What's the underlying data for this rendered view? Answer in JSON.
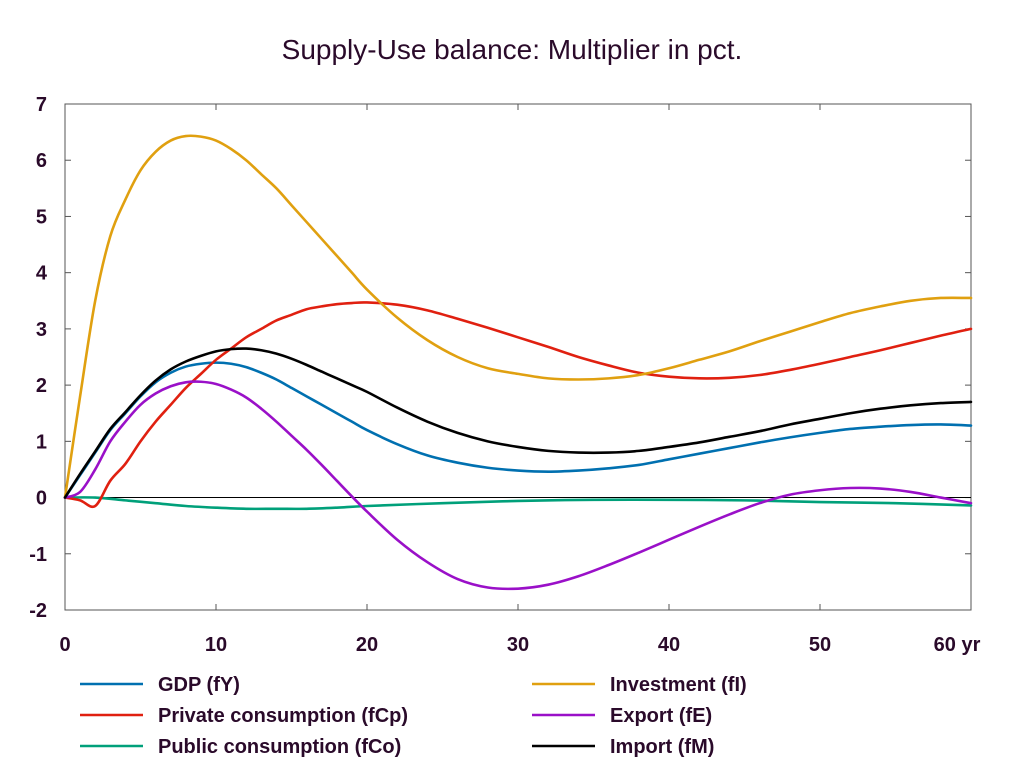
{
  "chart_data": {
    "type": "line",
    "title": "Supply-Use balance: Multiplier in pct.",
    "xlabel": "",
    "ylabel": "",
    "xlim": [
      0,
      60
    ],
    "ylim": [
      -2,
      7
    ],
    "xticks": [
      0,
      10,
      20,
      30,
      40,
      50,
      60
    ],
    "xtick_labels": [
      "0",
      "10",
      "20",
      "30",
      "40",
      "50",
      "60 yr"
    ],
    "yticks": [
      -2,
      -1,
      0,
      1,
      2,
      3,
      4,
      5,
      6,
      7
    ],
    "ytick_labels": [
      "-2",
      "-1",
      "0",
      "1",
      "2",
      "3",
      "4",
      "5",
      "6",
      "7"
    ],
    "grid": false,
    "zero_line": true,
    "legend_position": "bottom",
    "series": [
      {
        "name": "GDP (fY)",
        "color": "#0070b0",
        "x": [
          0,
          1,
          2,
          3,
          4,
          5,
          6,
          7,
          8,
          9,
          10,
          11,
          12,
          13,
          14,
          15,
          16,
          17,
          18,
          19,
          20,
          22,
          24,
          26,
          28,
          30,
          32,
          34,
          36,
          38,
          40,
          42,
          44,
          46,
          48,
          50,
          52,
          54,
          56,
          58,
          60
        ],
        "y": [
          0,
          0.4,
          0.8,
          1.2,
          1.5,
          1.8,
          2.05,
          2.22,
          2.33,
          2.38,
          2.4,
          2.38,
          2.32,
          2.22,
          2.1,
          1.95,
          1.8,
          1.65,
          1.5,
          1.35,
          1.2,
          0.95,
          0.75,
          0.62,
          0.53,
          0.48,
          0.46,
          0.48,
          0.52,
          0.58,
          0.68,
          0.78,
          0.88,
          0.98,
          1.07,
          1.15,
          1.22,
          1.26,
          1.29,
          1.3,
          1.28
        ]
      },
      {
        "name": "Private consumption (fCp)",
        "color": "#e02010",
        "x": [
          0,
          1,
          2,
          3,
          4,
          5,
          6,
          7,
          8,
          9,
          10,
          11,
          12,
          13,
          14,
          15,
          16,
          17,
          18,
          19,
          20,
          22,
          24,
          26,
          28,
          30,
          32,
          34,
          36,
          38,
          40,
          42,
          44,
          46,
          48,
          50,
          52,
          54,
          56,
          58,
          60
        ],
        "y": [
          0,
          -0.05,
          -0.15,
          0.3,
          0.6,
          1.0,
          1.35,
          1.65,
          1.95,
          2.2,
          2.45,
          2.65,
          2.85,
          3.0,
          3.15,
          3.25,
          3.35,
          3.4,
          3.44,
          3.46,
          3.47,
          3.43,
          3.33,
          3.18,
          3.02,
          2.85,
          2.68,
          2.5,
          2.35,
          2.22,
          2.15,
          2.12,
          2.13,
          2.18,
          2.27,
          2.38,
          2.5,
          2.62,
          2.75,
          2.88,
          3.0
        ]
      },
      {
        "name": "Public consumption (fCo)",
        "color": "#00a07a",
        "x": [
          0,
          2,
          4,
          6,
          8,
          10,
          12,
          14,
          16,
          18,
          20,
          25,
          30,
          35,
          40,
          45,
          50,
          55,
          60
        ],
        "y": [
          0,
          0.0,
          -0.05,
          -0.1,
          -0.15,
          -0.18,
          -0.2,
          -0.2,
          -0.2,
          -0.18,
          -0.15,
          -0.1,
          -0.06,
          -0.04,
          -0.04,
          -0.05,
          -0.08,
          -0.1,
          -0.14
        ]
      },
      {
        "name": "Investment (fI)",
        "color": "#e0a010",
        "x": [
          0,
          1,
          2,
          3,
          4,
          5,
          6,
          7,
          8,
          9,
          10,
          11,
          12,
          13,
          14,
          15,
          16,
          17,
          18,
          19,
          20,
          22,
          24,
          26,
          28,
          30,
          32,
          34,
          36,
          38,
          40,
          42,
          44,
          46,
          48,
          50,
          52,
          54,
          56,
          58,
          60
        ],
        "y": [
          0,
          1.8,
          3.5,
          4.65,
          5.3,
          5.82,
          6.15,
          6.35,
          6.43,
          6.42,
          6.35,
          6.2,
          6.0,
          5.75,
          5.5,
          5.2,
          4.9,
          4.6,
          4.3,
          4.0,
          3.7,
          3.2,
          2.8,
          2.5,
          2.3,
          2.2,
          2.12,
          2.1,
          2.12,
          2.18,
          2.3,
          2.45,
          2.6,
          2.78,
          2.95,
          3.12,
          3.28,
          3.4,
          3.5,
          3.55,
          3.55
        ]
      },
      {
        "name": "Export (fE)",
        "color": "#9a10c8",
        "x": [
          0,
          1,
          2,
          3,
          4,
          5,
          6,
          7,
          8,
          9,
          10,
          11,
          12,
          13,
          14,
          15,
          16,
          17,
          18,
          19,
          20,
          22,
          24,
          26,
          28,
          30,
          32,
          34,
          36,
          38,
          40,
          42,
          44,
          46,
          48,
          50,
          52,
          54,
          56,
          58,
          60
        ],
        "y": [
          0,
          0.1,
          0.5,
          1.0,
          1.35,
          1.65,
          1.85,
          1.98,
          2.05,
          2.06,
          2.02,
          1.92,
          1.78,
          1.58,
          1.35,
          1.1,
          0.85,
          0.58,
          0.3,
          0.02,
          -0.25,
          -0.75,
          -1.15,
          -1.45,
          -1.6,
          -1.62,
          -1.55,
          -1.4,
          -1.2,
          -0.98,
          -0.75,
          -0.52,
          -0.3,
          -0.1,
          0.05,
          0.13,
          0.17,
          0.16,
          0.1,
          0.0,
          -0.1
        ]
      },
      {
        "name": "Import (fM)",
        "color": "#000000",
        "x": [
          0,
          1,
          2,
          3,
          4,
          5,
          6,
          7,
          8,
          9,
          10,
          11,
          12,
          13,
          14,
          15,
          16,
          17,
          18,
          19,
          20,
          22,
          24,
          26,
          28,
          30,
          32,
          34,
          36,
          38,
          40,
          42,
          44,
          46,
          48,
          50,
          52,
          54,
          56,
          58,
          60
        ],
        "y": [
          0,
          0.42,
          0.82,
          1.22,
          1.52,
          1.82,
          2.08,
          2.28,
          2.42,
          2.52,
          2.6,
          2.64,
          2.65,
          2.62,
          2.56,
          2.47,
          2.36,
          2.24,
          2.12,
          2.0,
          1.88,
          1.6,
          1.35,
          1.15,
          1.0,
          0.9,
          0.83,
          0.8,
          0.8,
          0.83,
          0.9,
          0.98,
          1.08,
          1.18,
          1.3,
          1.4,
          1.5,
          1.58,
          1.64,
          1.68,
          1.7
        ]
      }
    ]
  }
}
